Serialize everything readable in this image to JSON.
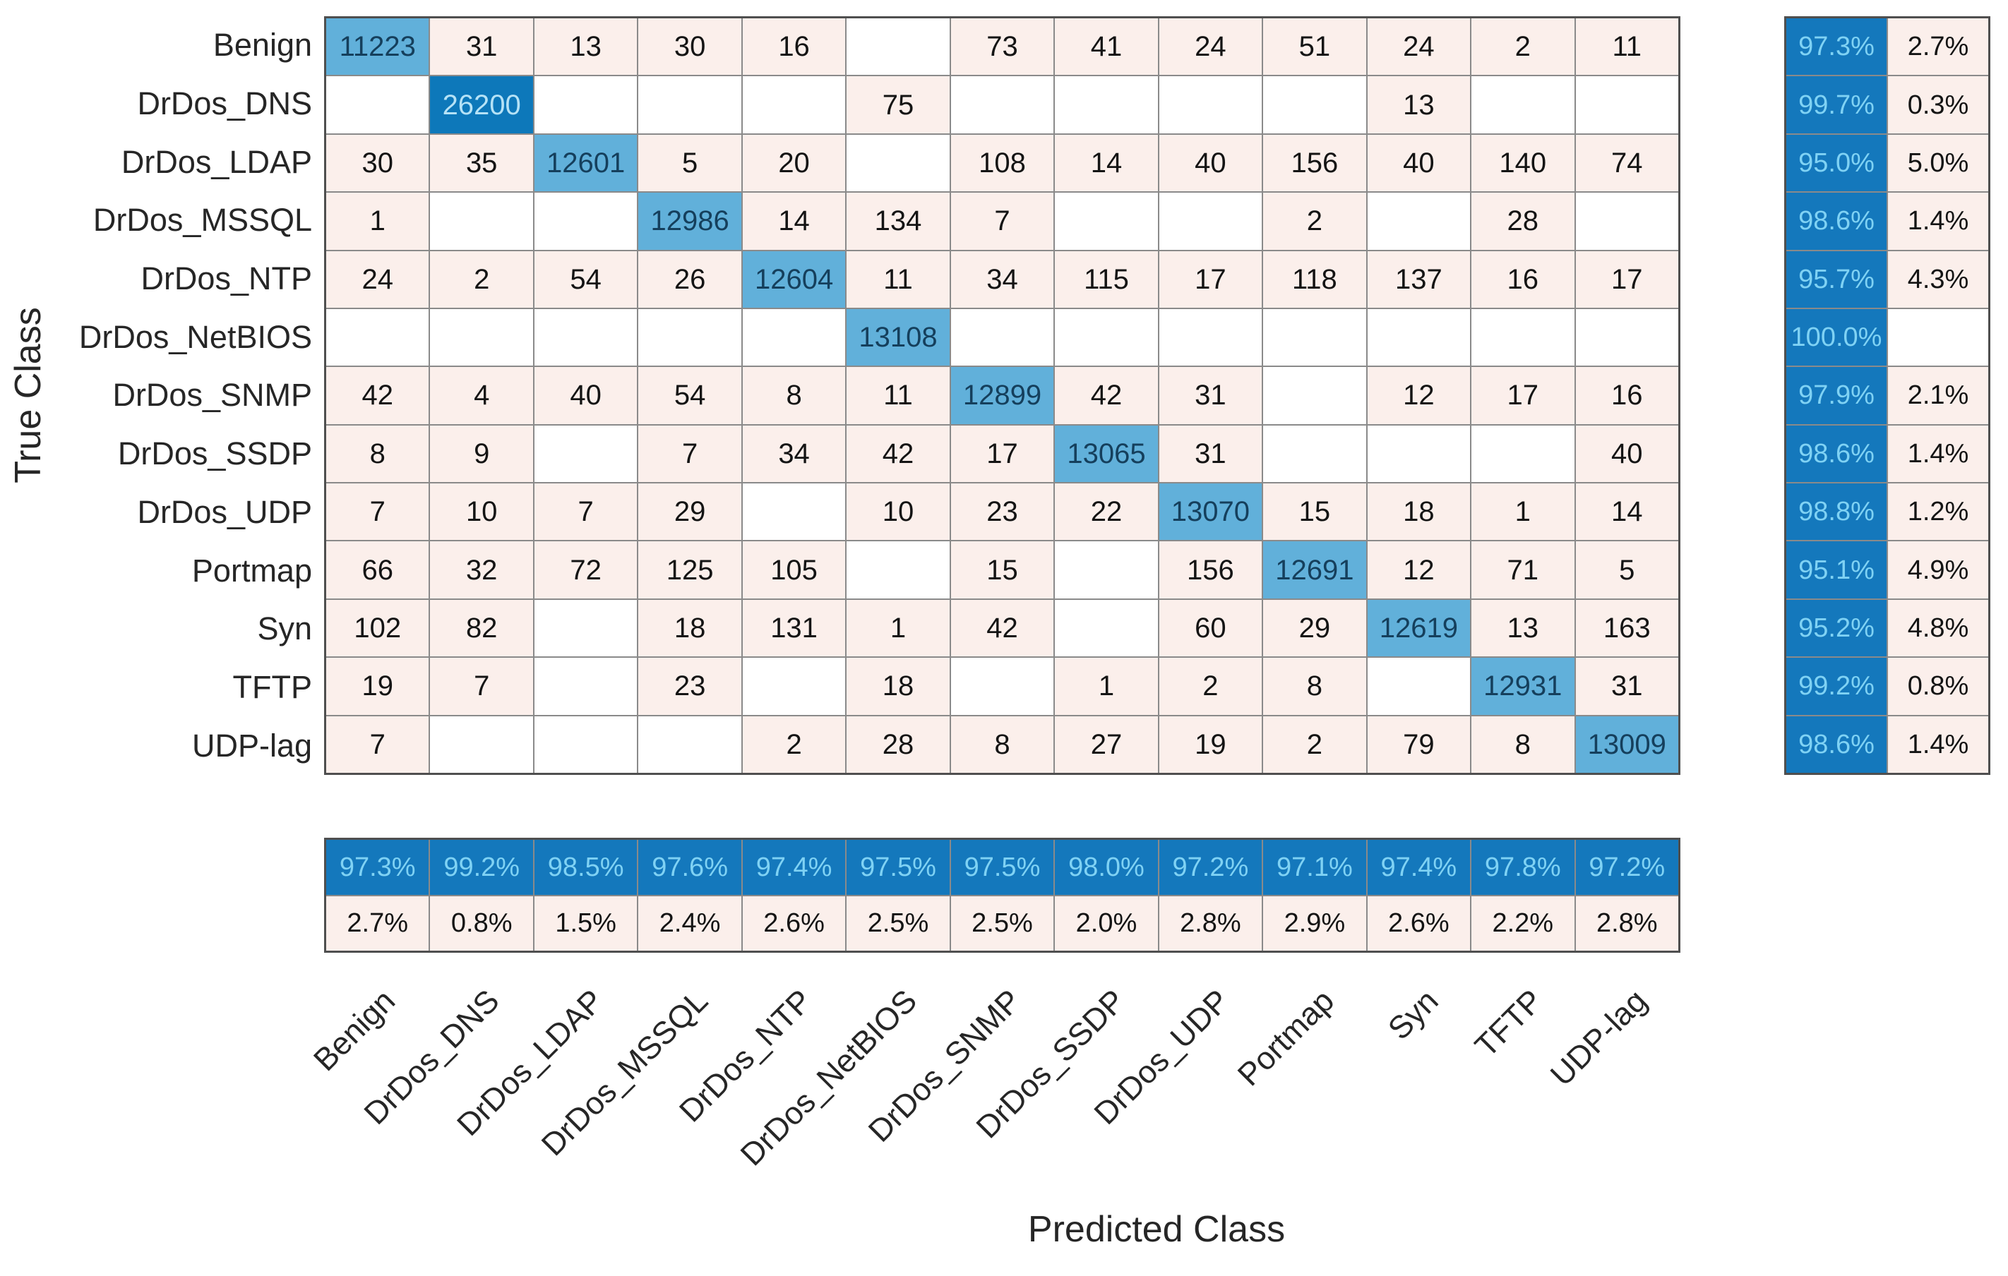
{
  "chart_data": {
    "type": "heatmap",
    "xlabel": "Predicted Class",
    "ylabel": "True Class",
    "classes": [
      "Benign",
      "DrDos_DNS",
      "DrDos_LDAP",
      "DrDos_MSSQL",
      "DrDos_NTP",
      "DrDos_NetBIOS",
      "DrDos_SNMP",
      "DrDos_SSDP",
      "DrDos_UDP",
      "Portmap",
      "Syn",
      "TFTP",
      "UDP-lag"
    ],
    "matrix": [
      [
        11223,
        31,
        13,
        30,
        16,
        null,
        73,
        41,
        24,
        51,
        24,
        2,
        11
      ],
      [
        null,
        26200,
        null,
        null,
        null,
        75,
        null,
        null,
        null,
        null,
        13,
        null,
        null
      ],
      [
        30,
        35,
        12601,
        5,
        20,
        null,
        108,
        14,
        40,
        156,
        40,
        140,
        74
      ],
      [
        1,
        null,
        null,
        12986,
        14,
        134,
        7,
        null,
        null,
        2,
        null,
        28,
        null
      ],
      [
        24,
        2,
        54,
        26,
        12604,
        11,
        34,
        115,
        17,
        118,
        137,
        16,
        17
      ],
      [
        null,
        null,
        null,
        null,
        null,
        13108,
        null,
        null,
        null,
        null,
        null,
        null,
        null
      ],
      [
        42,
        4,
        40,
        54,
        8,
        11,
        12899,
        42,
        31,
        null,
        12,
        17,
        16
      ],
      [
        8,
        9,
        null,
        7,
        34,
        42,
        17,
        13065,
        31,
        null,
        null,
        null,
        40
      ],
      [
        7,
        10,
        7,
        29,
        null,
        10,
        23,
        22,
        13070,
        15,
        18,
        1,
        14
      ],
      [
        66,
        32,
        72,
        125,
        105,
        null,
        15,
        null,
        156,
        12691,
        12,
        71,
        5
      ],
      [
        102,
        82,
        null,
        18,
        131,
        1,
        42,
        null,
        60,
        29,
        12619,
        13,
        163
      ],
      [
        19,
        7,
        null,
        23,
        null,
        18,
        null,
        1,
        2,
        8,
        null,
        12931,
        31
      ],
      [
        7,
        null,
        null,
        null,
        2,
        28,
        8,
        27,
        19,
        2,
        79,
        8,
        13009
      ]
    ],
    "row_summary": [
      {
        "pct": "97.3%",
        "err": "2.7%"
      },
      {
        "pct": "99.7%",
        "err": "0.3%"
      },
      {
        "pct": "95.0%",
        "err": "5.0%"
      },
      {
        "pct": "98.6%",
        "err": "1.4%"
      },
      {
        "pct": "95.7%",
        "err": "4.3%"
      },
      {
        "pct": "100.0%",
        "err": null
      },
      {
        "pct": "97.9%",
        "err": "2.1%"
      },
      {
        "pct": "98.6%",
        "err": "1.4%"
      },
      {
        "pct": "98.8%",
        "err": "1.2%"
      },
      {
        "pct": "95.1%",
        "err": "4.9%"
      },
      {
        "pct": "95.2%",
        "err": "4.8%"
      },
      {
        "pct": "99.2%",
        "err": "0.8%"
      },
      {
        "pct": "98.6%",
        "err": "1.4%"
      }
    ],
    "col_summary": [
      {
        "pct": "97.3%",
        "err": "2.7%"
      },
      {
        "pct": "99.2%",
        "err": "0.8%"
      },
      {
        "pct": "98.5%",
        "err": "1.5%"
      },
      {
        "pct": "97.6%",
        "err": "2.4%"
      },
      {
        "pct": "97.4%",
        "err": "2.6%"
      },
      {
        "pct": "97.5%",
        "err": "2.5%"
      },
      {
        "pct": "97.5%",
        "err": "2.5%"
      },
      {
        "pct": "98.0%",
        "err": "2.0%"
      },
      {
        "pct": "97.2%",
        "err": "2.8%"
      },
      {
        "pct": "97.1%",
        "err": "2.9%"
      },
      {
        "pct": "97.4%",
        "err": "2.6%"
      },
      {
        "pct": "97.8%",
        "err": "2.2%"
      },
      {
        "pct": "97.2%",
        "err": "2.8%"
      }
    ]
  },
  "colors": {
    "diagonal_cell": "#61b0da",
    "diagonal_max_cell": "#0d78ba",
    "offdiagonal_cell": "#fbefeb",
    "zero_cell": "#ffffff",
    "summary_blue": "#1478bc",
    "summary_blue_text": "#7fd2f4",
    "summary_pink": "#fbefeb",
    "grid_line": "#8a8a8a",
    "diag_text": "#153f5c",
    "text": "#262626"
  }
}
